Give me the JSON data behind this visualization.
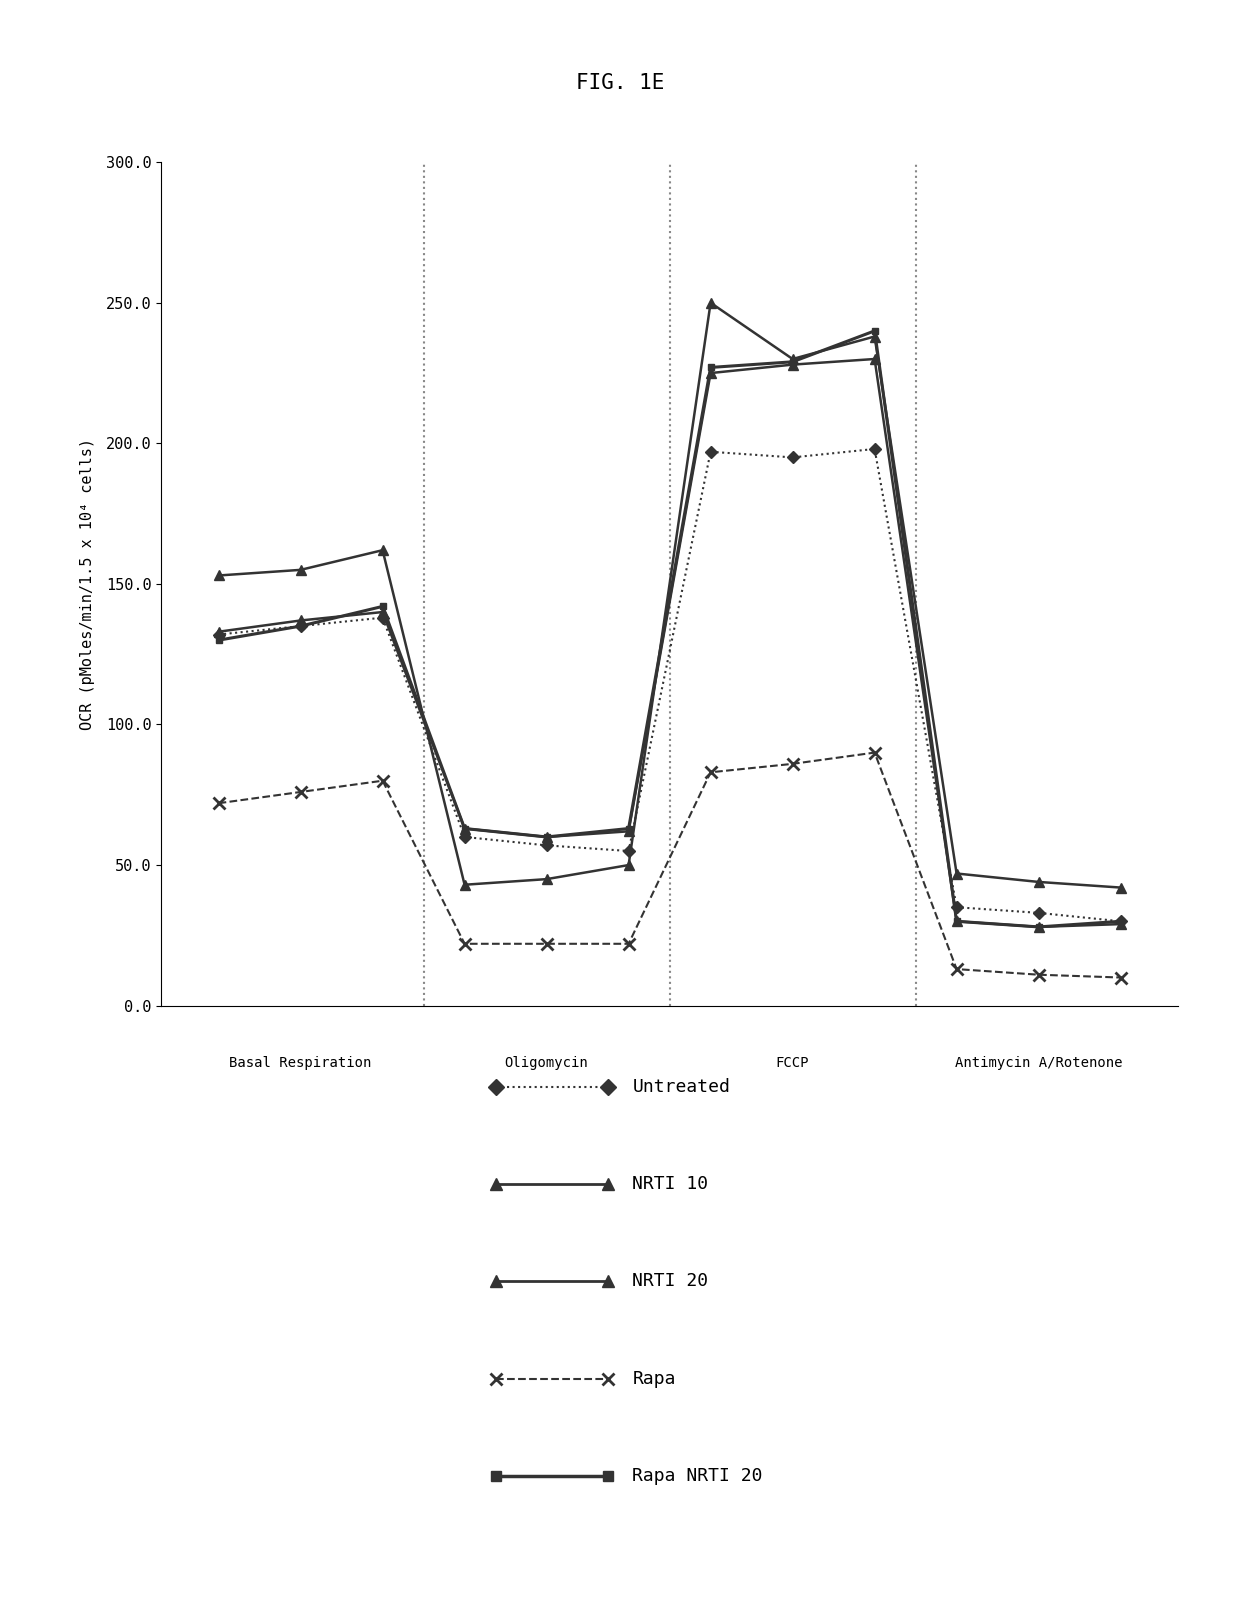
{
  "title": "FIG. 1E",
  "ylabel": "OCR (pMoles/min/1.5 x 10⁴ cells)",
  "ylim": [
    0.0,
    300.0
  ],
  "yticks": [
    0.0,
    50.0,
    100.0,
    150.0,
    200.0,
    250.0,
    300.0
  ],
  "ytick_labels": [
    "0.0",
    "50.0",
    "100.0",
    "150.0",
    "200.0",
    "250.0",
    "300.0"
  ],
  "sections": [
    "Basal Respiration",
    "Oligomycin",
    "FCCP",
    "Antimycin A/Rotenone"
  ],
  "x_values": [
    1,
    2,
    3,
    4,
    5,
    6,
    7,
    8,
    9,
    10,
    11,
    12
  ],
  "section_dividers": [
    3.5,
    6.5,
    9.5
  ],
  "section_centers": [
    2.0,
    5.0,
    8.0,
    11.0
  ],
  "series_order": [
    "Untreated",
    "NRTI 10",
    "NRTI 20",
    "Rapa",
    "Rapa NRTI 20"
  ],
  "series": {
    "Untreated": {
      "y": [
        132,
        135,
        138,
        60,
        57,
        55,
        197,
        195,
        198,
        35,
        33,
        30
      ]
    },
    "NRTI 10": {
      "y": [
        133,
        137,
        140,
        63,
        60,
        62,
        225,
        228,
        230,
        30,
        28,
        29
      ]
    },
    "NRTI 20": {
      "y": [
        153,
        155,
        162,
        43,
        45,
        50,
        250,
        230,
        238,
        47,
        44,
        42
      ]
    },
    "Rapa": {
      "y": [
        72,
        76,
        80,
        22,
        22,
        22,
        83,
        86,
        90,
        13,
        11,
        10
      ]
    },
    "Rapa NRTI 20": {
      "y": [
        130,
        135,
        142,
        63,
        60,
        63,
        227,
        229,
        240,
        30,
        28,
        30
      ]
    }
  },
  "background_color": "#ffffff",
  "divider_color": "#888888",
  "line_color": "#333333",
  "fig_width": 12.4,
  "fig_height": 16.22,
  "dpi": 100
}
